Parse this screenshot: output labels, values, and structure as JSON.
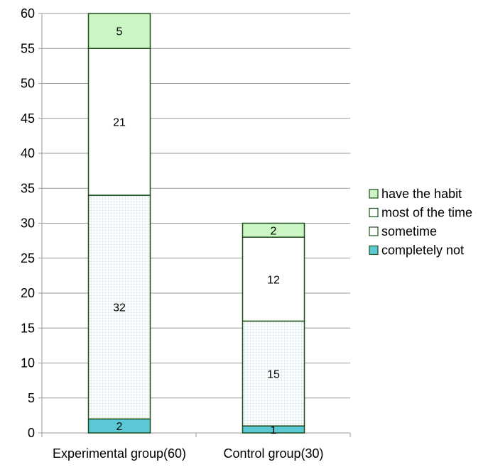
{
  "chart_data": {
    "type": "bar",
    "stacked": true,
    "categories": [
      "Experimental group(60)",
      "Control group(30)"
    ],
    "series": [
      {
        "name": "completely not",
        "values": [
          2,
          1
        ],
        "color": "#5bc8d6",
        "pattern": "solid"
      },
      {
        "name": "sometime",
        "values": [
          32,
          15
        ],
        "color": "#ffffff",
        "pattern": "grid",
        "pattern_color": "#cfe3ea"
      },
      {
        "name": "most of the time",
        "values": [
          21,
          12
        ],
        "color": "#ffffff",
        "pattern": "solid"
      },
      {
        "name": "have the habit",
        "values": [
          5,
          2
        ],
        "color": "#ccf5c4",
        "pattern": "solid"
      }
    ],
    "y_ticks": [
      "0",
      "5",
      "10",
      "15",
      "20",
      "25",
      "30",
      "35",
      "40",
      "45",
      "50",
      "55",
      "60"
    ],
    "ylim": [
      0,
      60
    ],
    "ytick_step": 5,
    "grid": true,
    "legend_position": "right",
    "legend_order": [
      "have the habit",
      "most of the time",
      "sometime",
      "completely not"
    ],
    "xlabel": "",
    "ylabel": "",
    "title": ""
  },
  "colors": {
    "bar_border": "#1a4d1a",
    "grid": "#999999",
    "axis": "#999999"
  }
}
